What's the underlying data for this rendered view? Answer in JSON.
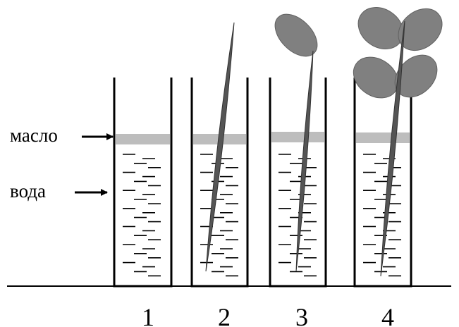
{
  "labels": {
    "oil": "масло",
    "water": "вода"
  },
  "beakers": [
    {
      "label": "1"
    },
    {
      "label": "2"
    },
    {
      "label": "3"
    },
    {
      "label": "4"
    }
  ]
}
